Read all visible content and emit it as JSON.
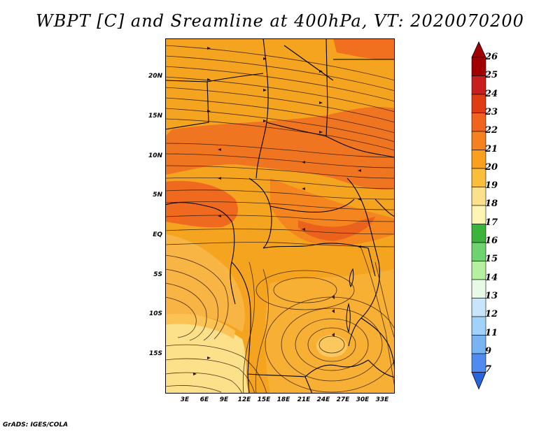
{
  "title": "WBPT [C] and Sreamline at 400hPa, VT: 2020070200",
  "footer": "GrADS: IGES/COLA",
  "map": {
    "lat_labels": [
      "20N",
      "15N",
      "10N",
      "5N",
      "EQ",
      "5S",
      "10S",
      "15S"
    ],
    "lon_labels": [
      "3E",
      "6E",
      "9E",
      "12E",
      "15E",
      "18E",
      "21E",
      "24E",
      "27E",
      "30E",
      "33E"
    ],
    "shading_variable": "Wet-bulb potential temperature",
    "overlay": "streamlines"
  },
  "colorbar": {
    "labels": [
      "26",
      "25",
      "24",
      "23",
      "22",
      "21",
      "20",
      "19",
      "18",
      "17",
      "16",
      "15",
      "14",
      "13",
      "12",
      "11",
      "9",
      "7"
    ],
    "colors": [
      "#a00000",
      "#c81e1e",
      "#e03c14",
      "#f0641e",
      "#f5821e",
      "#faa01e",
      "#fbbe3c",
      "#fce18c",
      "#fdf5b4",
      "#3cb43c",
      "#6ed26e",
      "#b4f0a0",
      "#e6fae6",
      "#c8e6fa",
      "#a0d2fa",
      "#78b4f0",
      "#508cf0",
      "#2864dc"
    ]
  }
}
